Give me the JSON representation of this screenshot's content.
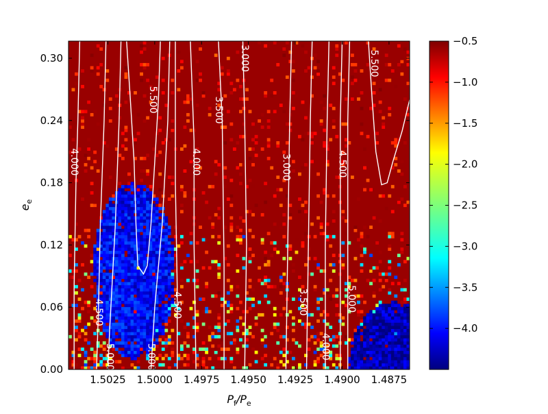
{
  "chart_data": {
    "type": "heatmap",
    "title": "",
    "xlabel": "P_f/P_e",
    "xlabel_main": "P",
    "xlabel_sub1": "f",
    "xlabel_mid": "/P",
    "xlabel_sub2": "e",
    "ylabel": "e_e",
    "ylabel_main": "e",
    "ylabel_sub": "e",
    "x_range": [
      1.5046,
      1.4864
    ],
    "x_inverted": true,
    "y_range": [
      0.0,
      0.3165
    ],
    "x_ticks": [
      {
        "value": 1.5025,
        "label": "1.5025"
      },
      {
        "value": 1.5,
        "label": "1.5000"
      },
      {
        "value": 1.4975,
        "label": "1.4975"
      },
      {
        "value": 1.495,
        "label": "1.4950"
      },
      {
        "value": 1.4925,
        "label": "1.4925"
      },
      {
        "value": 1.49,
        "label": "1.4900"
      },
      {
        "value": 1.4875,
        "label": "1.4875"
      }
    ],
    "y_ticks": [
      {
        "value": 0.0,
        "label": "0.00"
      },
      {
        "value": 0.06,
        "label": "0.06"
      },
      {
        "value": 0.12,
        "label": "0.12"
      },
      {
        "value": 0.18,
        "label": "0.18"
      },
      {
        "value": 0.24,
        "label": "0.24"
      },
      {
        "value": 0.3,
        "label": "0.30"
      }
    ],
    "colorbar": {
      "colormap": "jet",
      "range": [
        -4.5,
        -0.5
      ],
      "ticks": [
        {
          "value": -0.5,
          "label": "−0.5"
        },
        {
          "value": -1.0,
          "label": "−1.0"
        },
        {
          "value": -1.5,
          "label": "−1.5"
        },
        {
          "value": -2.0,
          "label": "−2.0"
        },
        {
          "value": -2.5,
          "label": "−2.5"
        },
        {
          "value": -3.0,
          "label": "−3.0"
        },
        {
          "value": -3.5,
          "label": "−3.5"
        },
        {
          "value": -4.0,
          "label": "−4.0"
        }
      ]
    },
    "heatmap": {
      "grid_x_cells": 110,
      "grid_y_cells": 105,
      "background_value": -0.6,
      "regions": [
        {
          "kind": "low",
          "x_center": 1.5011,
          "y_center": 0.095,
          "x_halfwidth": 0.0022,
          "y_halfwidth": 0.085,
          "value": -4.0
        },
        {
          "kind": "low",
          "x_center": 1.4872,
          "y_center": 0.0,
          "x_halfwidth": 0.0025,
          "y_halfwidth": 0.065,
          "value": -4.3
        },
        {
          "kind": "scatter",
          "x_min": 1.5046,
          "x_max": 1.4864,
          "y_min": 0.0,
          "y_max": 0.13,
          "value_range": [
            -3.8,
            -1.0
          ]
        }
      ]
    },
    "contours": [
      {
        "level_label": "4.000",
        "points": [
          [
            1.5043,
            0.0
          ],
          [
            1.5043,
            0.08
          ],
          [
            1.5042,
            0.18
          ],
          [
            1.5041,
            0.24
          ],
          [
            1.504,
            0.3165
          ]
        ],
        "label_at": [
          1.5043,
          0.2
        ]
      },
      {
        "level_label": "4.500",
        "points": [
          [
            1.5031,
            0.0
          ],
          [
            1.503,
            0.06
          ],
          [
            1.5029,
            0.14
          ],
          [
            1.5027,
            0.24
          ],
          [
            1.5026,
            0.3165
          ]
        ],
        "label_at": [
          1.503,
          0.055
        ]
      },
      {
        "level_label": "5.000",
        "points": [
          [
            1.5025,
            0.0
          ],
          [
            1.5024,
            0.04
          ],
          [
            1.5021,
            0.14
          ],
          [
            1.5019,
            0.24
          ],
          [
            1.5018,
            0.3165
          ]
        ],
        "label_at": [
          1.5024,
          0.012
        ]
      },
      {
        "level_label": "5.500",
        "points": [
          [
            1.5015,
            0.3165
          ],
          [
            1.5013,
            0.26
          ],
          [
            1.5011,
            0.2
          ],
          [
            1.501,
            0.14
          ],
          [
            1.5009,
            0.1
          ],
          [
            1.5006,
            0.092
          ],
          [
            1.5004,
            0.1
          ],
          [
            1.5002,
            0.14
          ],
          [
            1.5,
            0.2
          ],
          [
            1.4998,
            0.26
          ],
          [
            1.4997,
            0.3165
          ]
        ],
        "label_at": [
          1.5001,
          0.26
        ]
      },
      {
        "level_label": "5.000",
        "points": [
          [
            1.5002,
            0.0
          ],
          [
            1.5,
            0.06
          ],
          [
            1.4996,
            0.14
          ],
          [
            1.4993,
            0.24
          ],
          [
            1.4992,
            0.3165
          ]
        ],
        "label_at": [
          1.5002,
          0.012
        ]
      },
      {
        "level_label": "4.500",
        "points": [
          [
            1.4988,
            0.0
          ],
          [
            1.4988,
            0.08
          ],
          [
            1.4989,
            0.18
          ],
          [
            1.4989,
            0.3165
          ]
        ],
        "label_at": [
          1.4988,
          0.062
        ]
      },
      {
        "level_label": "4.000",
        "points": [
          [
            1.4978,
            0.0
          ],
          [
            1.4979,
            0.12
          ],
          [
            1.4979,
            0.22
          ],
          [
            1.4981,
            0.3165
          ]
        ],
        "label_at": [
          1.4978,
          0.2
        ]
      },
      {
        "level_label": "3.500",
        "points": [
          [
            1.4963,
            0.0
          ],
          [
            1.4963,
            0.1
          ],
          [
            1.4964,
            0.24
          ],
          [
            1.4966,
            0.3165
          ]
        ],
        "label_at": [
          1.4966,
          0.25
        ]
      },
      {
        "level_label": "3.000",
        "points": [
          [
            1.4952,
            0.0
          ],
          [
            1.4951,
            0.12
          ],
          [
            1.4952,
            0.24
          ],
          [
            1.4953,
            0.3165
          ]
        ],
        "label_at": [
          1.4952,
          0.3
        ]
      },
      {
        "level_label": "3.000",
        "points": [
          [
            1.493,
            0.0
          ],
          [
            1.4929,
            0.12
          ],
          [
            1.4928,
            0.24
          ],
          [
            1.4927,
            0.3165
          ]
        ],
        "label_at": [
          1.493,
          0.195
        ]
      },
      {
        "level_label": "3.500",
        "points": [
          [
            1.4919,
            0.0
          ],
          [
            1.4918,
            0.12
          ],
          [
            1.4917,
            0.24
          ],
          [
            1.4916,
            0.3165
          ]
        ],
        "label_at": [
          1.4921,
          0.065
        ]
      },
      {
        "level_label": "4.000",
        "points": [
          [
            1.4909,
            0.0
          ],
          [
            1.4909,
            0.12
          ],
          [
            1.4908,
            0.24
          ],
          [
            1.4907,
            0.3165
          ]
        ],
        "label_at": [
          1.4909,
          0.022
        ]
      },
      {
        "level_label": "4.500",
        "points": [
          [
            1.4901,
            0.0
          ],
          [
            1.4901,
            0.12
          ],
          [
            1.4901,
            0.24
          ],
          [
            1.49,
            0.3165
          ]
        ],
        "label_at": [
          1.49,
          0.198
        ]
      },
      {
        "level_label": "5.000",
        "points": [
          [
            1.4897,
            0.0
          ],
          [
            1.4897,
            0.12
          ],
          [
            1.4897,
            0.24
          ],
          [
            1.4896,
            0.3165
          ]
        ],
        "label_at": [
          1.4895,
          0.068
        ]
      },
      {
        "level_label": "5.500",
        "points": [
          [
            1.4886,
            0.3165
          ],
          [
            1.4884,
            0.26
          ],
          [
            1.4882,
            0.21
          ],
          [
            1.4879,
            0.178
          ],
          [
            1.4876,
            0.18
          ],
          [
            1.4873,
            0.2
          ],
          [
            1.4868,
            0.23
          ],
          [
            1.4864,
            0.26
          ]
        ],
        "label_at": [
          1.4883,
          0.295
        ]
      }
    ]
  }
}
